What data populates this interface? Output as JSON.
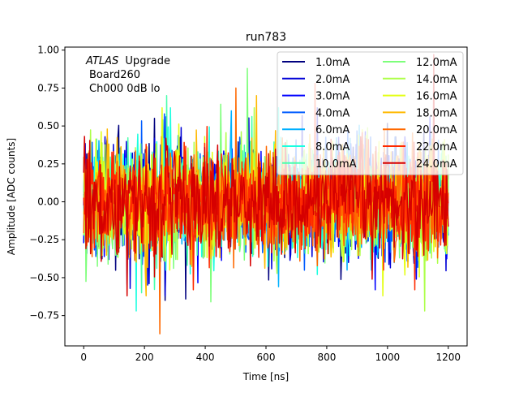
{
  "chart_data": {
    "type": "line",
    "title": "run783",
    "xlabel": "Time [ns]",
    "ylabel": "Amplitude [ADC counts]",
    "xlim": [
      -62,
      1262
    ],
    "ylim": [
      -0.95,
      1.02
    ],
    "xticks": [
      0,
      200,
      400,
      600,
      800,
      1000,
      1200
    ],
    "yticks": [
      -0.75,
      -0.5,
      -0.25,
      0.0,
      0.25,
      0.5,
      0.75,
      1.0
    ],
    "x_range": [
      0,
      1200
    ],
    "grid": false,
    "legend_placement": "top-right",
    "legend_columns": 2,
    "annotation": {
      "atlas": "ATLAS",
      "upgrade": "Upgrade",
      "board": "Board260",
      "channel": "Ch000 0dB lo"
    },
    "series": [
      {
        "name": "1.0mA",
        "color": "#00007f",
        "noise_sd": 0.17,
        "peak_max": 0.55,
        "peak_min": -0.65
      },
      {
        "name": "2.0mA",
        "color": "#0000d6",
        "noise_sd": 0.17,
        "peak_max": 0.62,
        "peak_min": -0.62
      },
      {
        "name": "3.0mA",
        "color": "#0000ff",
        "noise_sd": 0.17,
        "peak_max": 0.56,
        "peak_min": -0.58
      },
      {
        "name": "4.0mA",
        "color": "#005cff",
        "noise_sd": 0.17,
        "peak_max": 0.58,
        "peak_min": -0.55
      },
      {
        "name": "6.0mA",
        "color": "#00b0ff",
        "noise_sd": 0.17,
        "peak_max": 0.6,
        "peak_min": -0.56
      },
      {
        "name": "8.0mA",
        "color": "#1affe0",
        "noise_sd": 0.17,
        "peak_max": 0.62,
        "peak_min": -0.72
      },
      {
        "name": "10.0mA",
        "color": "#49ffad",
        "noise_sd": 0.17,
        "peak_max": 0.7,
        "peak_min": -0.6
      },
      {
        "name": "12.0mA",
        "color": "#7dff7a",
        "noise_sd": 0.17,
        "peak_max": 0.88,
        "peak_min": -0.66
      },
      {
        "name": "14.0mA",
        "color": "#adff49",
        "noise_sd": 0.17,
        "peak_max": 0.62,
        "peak_min": -0.72
      },
      {
        "name": "16.0mA",
        "color": "#e4ff13",
        "noise_sd": 0.17,
        "peak_max": 0.62,
        "peak_min": -0.62
      },
      {
        "name": "18.0mA",
        "color": "#ffb900",
        "noise_sd": 0.17,
        "peak_max": 0.7,
        "peak_min": -0.62
      },
      {
        "name": "20.0mA",
        "color": "#ff6800",
        "noise_sd": 0.17,
        "peak_max": 0.75,
        "peak_min": -0.87
      },
      {
        "name": "22.0mA",
        "color": "#ff2900",
        "noise_sd": 0.17,
        "peak_max": 0.78,
        "peak_min": -0.58
      },
      {
        "name": "24.0mA",
        "color": "#d60000",
        "noise_sd": 0.17,
        "peak_max": 0.97,
        "peak_min": -0.62
      }
    ]
  }
}
